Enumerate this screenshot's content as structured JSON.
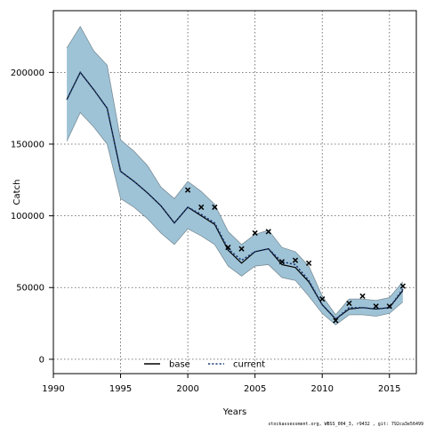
{
  "chart_data": {
    "type": "line",
    "xlabel": "Years",
    "ylabel": "Catch",
    "xlim": [
      1990,
      2017
    ],
    "ylim": [
      -10000,
      243000
    ],
    "x_ticks": [
      1990,
      1995,
      2000,
      2005,
      2010,
      2015
    ],
    "y_ticks": [
      0,
      50000,
      100000,
      150000,
      200000
    ],
    "grid": true,
    "legend_position": "bottom-center",
    "colors": {
      "band_fill": "#9fc3d6",
      "band_edge": "#7a8e99",
      "base_line": "#000000",
      "current_line": "#1f3f7a",
      "observed_marker": "#000000"
    },
    "x": [
      1991,
      1992,
      1993,
      1994,
      1995,
      1996,
      1997,
      1998,
      1999,
      2000,
      2001,
      2002,
      2003,
      2004,
      2005,
      2006,
      2007,
      2008,
      2009,
      2010,
      2011,
      2012,
      2013,
      2014,
      2015,
      2016
    ],
    "series": [
      {
        "name": "base",
        "style": "solid",
        "values": [
          181000,
          200000,
          188000,
          175000,
          131000,
          124000,
          116000,
          107000,
          95000,
          106000,
          100000,
          94000,
          76000,
          67000,
          75000,
          77000,
          66000,
          64000,
          54000,
          38000,
          28000,
          35000,
          36000,
          35000,
          36000,
          48000
        ]
      },
      {
        "name": "current",
        "style": "dashed",
        "values": [
          181000,
          200000,
          188000,
          175000,
          131000,
          124000,
          116000,
          107000,
          95000,
          106000,
          101000,
          95000,
          77000,
          69000,
          75000,
          77000,
          68000,
          66000,
          55000,
          38000,
          28000,
          36000,
          36000,
          35000,
          36000,
          49000
        ]
      }
    ],
    "band_upper": [
      217000,
      232000,
      215000,
      205000,
      153000,
      145000,
      135000,
      120000,
      112000,
      124000,
      117000,
      108000,
      89000,
      80000,
      87000,
      90000,
      78000,
      75000,
      65000,
      44000,
      31000,
      42000,
      42000,
      41000,
      43000,
      54000
    ],
    "band_lower": [
      152000,
      172000,
      162000,
      150000,
      112000,
      106000,
      98000,
      88000,
      80000,
      91000,
      86000,
      80000,
      65000,
      58000,
      65000,
      66000,
      57000,
      55000,
      44000,
      32000,
      24000,
      31000,
      31000,
      30000,
      32000,
      40000
    ],
    "observed": [
      {
        "x": 2000,
        "y": 118000
      },
      {
        "x": 2001,
        "y": 106000
      },
      {
        "x": 2002,
        "y": 106000
      },
      {
        "x": 2003,
        "y": 78000
      },
      {
        "x": 2004,
        "y": 77000
      },
      {
        "x": 2005,
        "y": 88000
      },
      {
        "x": 2006,
        "y": 89000
      },
      {
        "x": 2007,
        "y": 68000
      },
      {
        "x": 2008,
        "y": 69000
      },
      {
        "x": 2009,
        "y": 67000
      },
      {
        "x": 2010,
        "y": 42000
      },
      {
        "x": 2011,
        "y": 27000
      },
      {
        "x": 2012,
        "y": 39000
      },
      {
        "x": 2013,
        "y": 44000
      },
      {
        "x": 2014,
        "y": 37000
      },
      {
        "x": 2015,
        "y": 37000
      },
      {
        "x": 2016,
        "y": 51000
      }
    ],
    "legend": [
      {
        "label": "base",
        "style": "solid"
      },
      {
        "label": "current",
        "style": "dashed"
      }
    ]
  },
  "footer": {
    "text": "stockassessment.org, WBSS_004_3, r9432 , git: 792ca3e56499"
  }
}
